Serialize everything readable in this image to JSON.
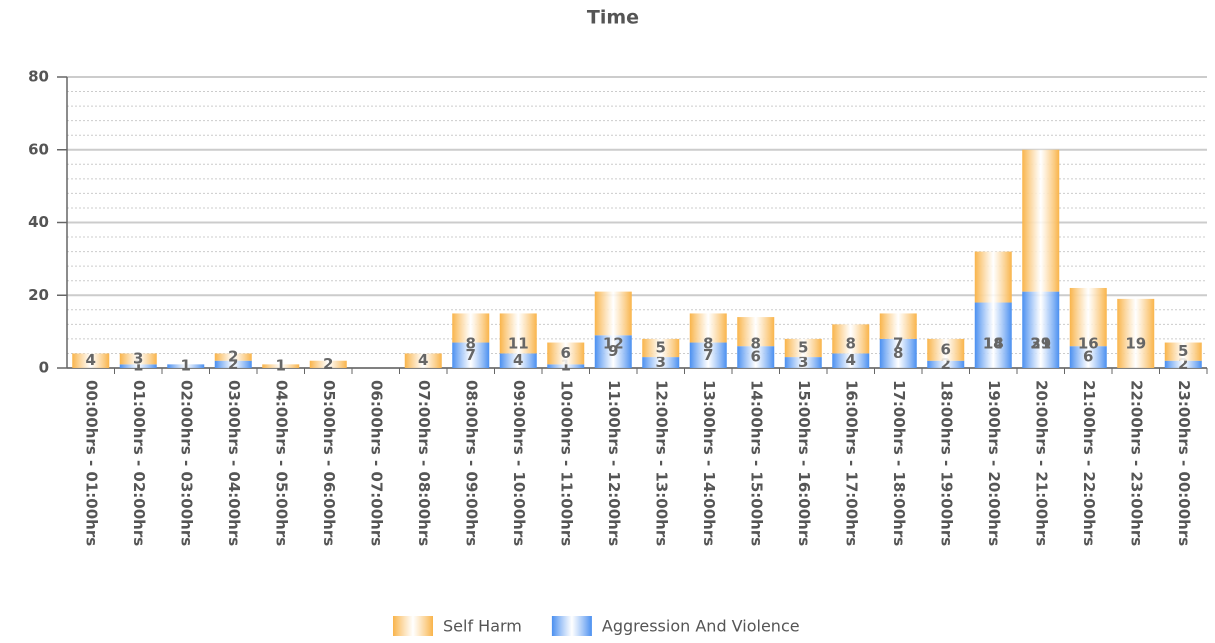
{
  "chart_data": {
    "type": "stacked_bar",
    "title": "Time",
    "categories": [
      "00:00hrs - 01:00hrs",
      "01:00hrs - 02:00hrs",
      "02:00hrs - 03:00hrs",
      "03:00hrs - 04:00hrs",
      "04:00hrs - 05:00hrs",
      "05:00hrs - 06:00hrs",
      "06:00hrs - 07:00hrs",
      "07:00hrs - 08:00hrs",
      "08:00hrs - 09:00hrs",
      "09:00hrs - 10:00hrs",
      "10:00hrs - 11:00hrs",
      "11:00hrs - 12:00hrs",
      "12:00hrs - 13:00hrs",
      "13:00hrs - 14:00hrs",
      "14:00hrs - 15:00hrs",
      "15:00hrs - 16:00hrs",
      "16:00hrs - 17:00hrs",
      "17:00hrs - 18:00hrs",
      "18:00hrs - 19:00hrs",
      "19:00hrs - 20:00hrs",
      "20:00hrs - 21:00hrs",
      "21:00hrs - 22:00hrs",
      "22:00hrs - 23:00hrs",
      "23:00hrs - 00:00hrs"
    ],
    "series": [
      {
        "name": "Self Harm",
        "color": "#f9b44a",
        "values": [
          4,
          3,
          0,
          2,
          1,
          2,
          0,
          4,
          8,
          11,
          6,
          12,
          5,
          8,
          8,
          5,
          8,
          7,
          6,
          14,
          39,
          16,
          19,
          5
        ]
      },
      {
        "name": "Aggression And Violence",
        "color": "#4a8ff0",
        "values": [
          0,
          1,
          1,
          2,
          0,
          0,
          0,
          0,
          7,
          4,
          1,
          9,
          3,
          7,
          6,
          3,
          4,
          8,
          2,
          18,
          21,
          6,
          0,
          2
        ]
      }
    ],
    "ylim": [
      0,
      80
    ],
    "yticks": [
      0,
      20,
      40,
      60,
      80
    ],
    "grid": true
  }
}
